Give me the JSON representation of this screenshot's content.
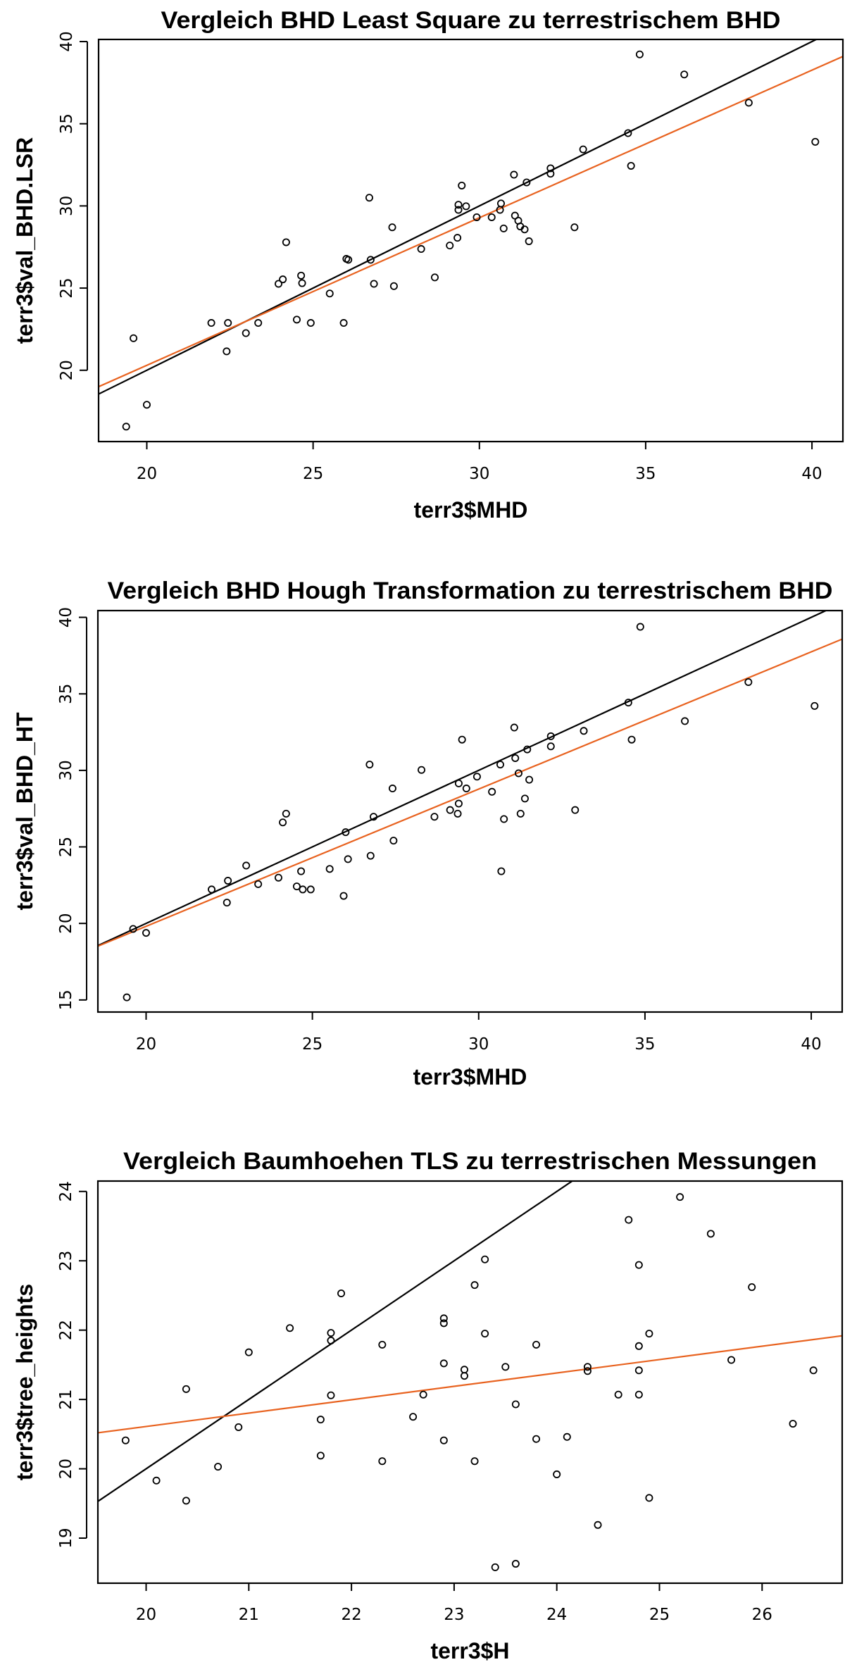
{
  "chart_data": [
    {
      "type": "scatter",
      "title": "Vergleich BHD Least Square zu terrestrischem BHD",
      "xlabel": "terr3$MHD",
      "ylabel": "terr3$val_BHD.LSR",
      "xlim": [
        18.55,
        40.93
      ],
      "ylim": [
        15.66,
        40.13
      ],
      "xticks": [
        20,
        25,
        30,
        35,
        40
      ],
      "yticks": [
        20,
        25,
        30,
        35,
        40
      ],
      "grid": false,
      "line_colors": {
        "reference": "#000000",
        "regression": "#e8621f"
      },
      "lines": [
        {
          "name": "1:1 line",
          "intercept": 0,
          "slope": 1,
          "color": "#000000"
        },
        {
          "name": "regression",
          "intercept": 2.34,
          "slope": 0.898,
          "color": "#e8621f"
        }
      ],
      "points": [
        [
          19.38,
          16.57
        ],
        [
          19.6,
          21.95
        ],
        [
          20.0,
          17.9
        ],
        [
          21.94,
          22.88
        ],
        [
          22.44,
          22.88
        ],
        [
          22.4,
          21.15
        ],
        [
          22.98,
          22.26
        ],
        [
          23.35,
          22.88
        ],
        [
          23.96,
          25.26
        ],
        [
          24.09,
          25.53
        ],
        [
          24.19,
          27.79
        ],
        [
          24.51,
          23.08
        ],
        [
          24.64,
          25.76
        ],
        [
          24.67,
          25.3
        ],
        [
          24.93,
          22.88
        ],
        [
          25.5,
          24.67
        ],
        [
          25.92,
          22.88
        ],
        [
          26.0,
          26.78
        ],
        [
          26.06,
          26.72
        ],
        [
          26.69,
          30.5
        ],
        [
          26.73,
          26.72
        ],
        [
          26.83,
          25.26
        ],
        [
          27.38,
          28.7
        ],
        [
          27.43,
          25.12
        ],
        [
          28.25,
          27.38
        ],
        [
          28.66,
          25.65
        ],
        [
          29.11,
          27.59
        ],
        [
          29.34,
          28.06
        ],
        [
          29.37,
          30.07
        ],
        [
          29.37,
          29.76
        ],
        [
          29.47,
          31.24
        ],
        [
          29.6,
          29.98
        ],
        [
          29.92,
          29.31
        ],
        [
          30.37,
          29.31
        ],
        [
          30.62,
          29.76
        ],
        [
          30.65,
          30.15
        ],
        [
          30.73,
          28.63
        ],
        [
          31.04,
          31.9
        ],
        [
          31.07,
          29.41
        ],
        [
          31.17,
          29.1
        ],
        [
          31.23,
          28.75
        ],
        [
          31.36,
          28.57
        ],
        [
          31.42,
          31.43
        ],
        [
          31.49,
          27.85
        ],
        [
          32.14,
          32.29
        ],
        [
          32.14,
          31.96
        ],
        [
          32.86,
          28.7
        ],
        [
          33.12,
          33.44
        ],
        [
          34.47,
          34.43
        ],
        [
          34.56,
          32.44
        ],
        [
          34.82,
          39.22
        ],
        [
          36.16,
          38.0
        ],
        [
          38.1,
          36.28
        ],
        [
          40.1,
          33.9
        ]
      ]
    },
    {
      "type": "scatter",
      "title": "Vergleich BHD Hough Transformation zu terrestrischem BHD",
      "xlabel": "terr3$MHD",
      "ylabel": "terr3$val_BHD_HT",
      "xlim": [
        18.55,
        40.93
      ],
      "ylim": [
        14.21,
        40.44
      ],
      "xticks": [
        20,
        25,
        30,
        35,
        40
      ],
      "yticks": [
        15,
        20,
        25,
        30,
        35,
        40
      ],
      "grid": false,
      "lines": [
        {
          "name": "1:1 line",
          "intercept": 0,
          "slope": 1,
          "color": "#000000"
        },
        {
          "name": "regression",
          "intercept": 1.88,
          "slope": 0.8966,
          "color": "#e8621f"
        }
      ],
      "points": [
        [
          19.42,
          15.17
        ],
        [
          19.61,
          19.64
        ],
        [
          20.0,
          19.38
        ],
        [
          21.97,
          22.22
        ],
        [
          22.46,
          22.79
        ],
        [
          22.43,
          21.36
        ],
        [
          23.01,
          23.78
        ],
        [
          23.37,
          22.57
        ],
        [
          23.98,
          22.99
        ],
        [
          24.11,
          26.6
        ],
        [
          24.21,
          27.17
        ],
        [
          24.53,
          22.42
        ],
        [
          24.66,
          23.41
        ],
        [
          24.71,
          22.22
        ],
        [
          24.95,
          22.22
        ],
        [
          25.52,
          23.56
        ],
        [
          25.94,
          21.8
        ],
        [
          26.0,
          25.96
        ],
        [
          26.07,
          24.2
        ],
        [
          26.72,
          30.38
        ],
        [
          26.75,
          24.42
        ],
        [
          26.84,
          26.97
        ],
        [
          27.41,
          28.82
        ],
        [
          27.44,
          25.41
        ],
        [
          28.28,
          30.03
        ],
        [
          28.67,
          26.97
        ],
        [
          29.14,
          27.41
        ],
        [
          29.37,
          27.17
        ],
        [
          29.4,
          27.83
        ],
        [
          29.4,
          29.15
        ],
        [
          29.5,
          32.01
        ],
        [
          29.63,
          28.82
        ],
        [
          29.95,
          29.59
        ],
        [
          30.4,
          28.6
        ],
        [
          30.65,
          30.38
        ],
        [
          30.68,
          23.41
        ],
        [
          30.76,
          26.82
        ],
        [
          31.07,
          32.8
        ],
        [
          31.1,
          30.8
        ],
        [
          31.2,
          29.81
        ],
        [
          31.26,
          27.17
        ],
        [
          31.39,
          28.16
        ],
        [
          31.46,
          31.37
        ],
        [
          31.52,
          29.39
        ],
        [
          32.17,
          32.23
        ],
        [
          32.17,
          31.57
        ],
        [
          32.9,
          27.41
        ],
        [
          33.16,
          32.58
        ],
        [
          34.5,
          34.43
        ],
        [
          34.6,
          32.01
        ],
        [
          34.86,
          39.38
        ],
        [
          36.2,
          33.22
        ],
        [
          38.11,
          35.77
        ],
        [
          40.1,
          34.21
        ]
      ]
    },
    {
      "type": "scatter",
      "title": "Vergleich Baumhoehen TLS zu terrestrischen Messungen",
      "xlabel": "terr3$H",
      "ylabel": "terr3$tree_heights",
      "xlim": [
        19.53,
        26.78
      ],
      "ylim": [
        18.35,
        24.15
      ],
      "xticks": [
        20,
        21,
        22,
        23,
        24,
        25,
        26
      ],
      "yticks": [
        19,
        20,
        21,
        22,
        23,
        24
      ],
      "grid": false,
      "lines": [
        {
          "name": "1:1 line",
          "intercept": 0,
          "slope": 1,
          "color": "#000000"
        },
        {
          "name": "regression",
          "intercept": 16.75,
          "slope": 0.193,
          "color": "#e8621f"
        }
      ],
      "points": [
        [
          19.8,
          20.41
        ],
        [
          20.1,
          19.83
        ],
        [
          20.39,
          21.15
        ],
        [
          20.39,
          19.54
        ],
        [
          20.7,
          20.03
        ],
        [
          20.9,
          20.6
        ],
        [
          21.0,
          21.68
        ],
        [
          21.4,
          22.03
        ],
        [
          21.7,
          20.71
        ],
        [
          21.7,
          20.19
        ],
        [
          21.8,
          21.96
        ],
        [
          21.8,
          21.85
        ],
        [
          21.8,
          21.06
        ],
        [
          21.9,
          22.53
        ],
        [
          22.3,
          21.79
        ],
        [
          22.3,
          20.11
        ],
        [
          22.6,
          20.75
        ],
        [
          22.7,
          21.07
        ],
        [
          22.9,
          22.17
        ],
        [
          22.9,
          22.1
        ],
        [
          22.9,
          21.52
        ],
        [
          22.9,
          20.41
        ],
        [
          23.1,
          21.43
        ],
        [
          23.1,
          21.34
        ],
        [
          23.2,
          22.65
        ],
        [
          23.2,
          20.11
        ],
        [
          23.3,
          23.02
        ],
        [
          23.3,
          21.95
        ],
        [
          23.4,
          18.58
        ],
        [
          23.5,
          21.47
        ],
        [
          23.6,
          20.93
        ],
        [
          23.6,
          18.63
        ],
        [
          23.8,
          21.79
        ],
        [
          23.8,
          20.43
        ],
        [
          24.0,
          19.92
        ],
        [
          24.1,
          20.46
        ],
        [
          24.3,
          21.47
        ],
        [
          24.3,
          21.41
        ],
        [
          24.4,
          19.19
        ],
        [
          24.6,
          21.07
        ],
        [
          24.7,
          23.59
        ],
        [
          24.8,
          22.94
        ],
        [
          24.8,
          21.77
        ],
        [
          24.8,
          21.42
        ],
        [
          24.8,
          21.07
        ],
        [
          24.9,
          21.95
        ],
        [
          24.9,
          19.58
        ],
        [
          25.2,
          23.92
        ],
        [
          25.5,
          23.39
        ],
        [
          25.7,
          21.57
        ],
        [
          25.9,
          22.62
        ],
        [
          26.3,
          20.65
        ],
        [
          26.5,
          21.42
        ]
      ]
    }
  ]
}
